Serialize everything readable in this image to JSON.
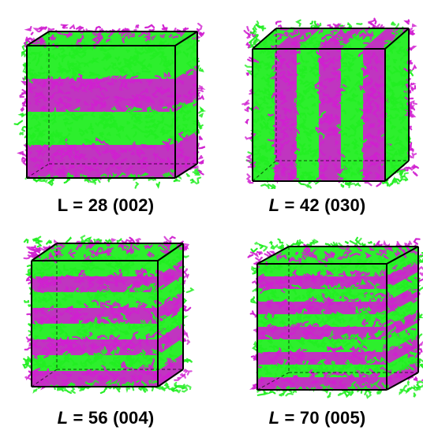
{
  "colors": {
    "background": "#ffffff",
    "block_a": "#22ee22",
    "block_b": "#d020d0",
    "box_edge": "#000000"
  },
  "panels": [
    {
      "caption": {
        "variable": "L",
        "equals": " = ",
        "value": "28",
        "index": "(002)",
        "italic": false
      },
      "lamella_orientation": "horizontal",
      "domain_count": 2
    },
    {
      "caption": {
        "variable": "L",
        "equals": " = ",
        "value": "42",
        "index": "(030)",
        "italic": true
      },
      "lamella_orientation": "vertical",
      "domain_count": 3
    },
    {
      "caption": {
        "variable": "L",
        "equals": " = ",
        "value": "56",
        "index": "(004)",
        "italic": true
      },
      "lamella_orientation": "horizontal",
      "domain_count": 4
    },
    {
      "caption": {
        "variable": "L",
        "equals": " = ",
        "value": "70",
        "index": "(005)",
        "italic": true
      },
      "lamella_orientation": "horizontal",
      "domain_count": 5
    }
  ]
}
